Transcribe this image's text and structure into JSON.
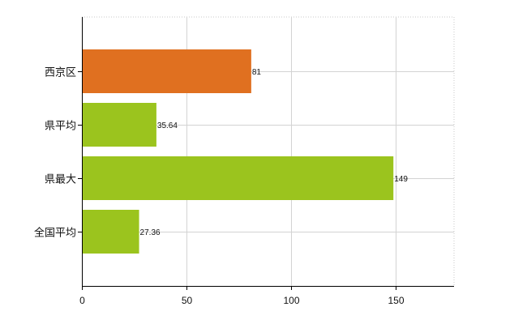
{
  "chart_data": {
    "type": "bar",
    "orientation": "horizontal",
    "categories": [
      "西京区",
      "県平均",
      "県最大",
      "全国平均"
    ],
    "values": [
      81,
      35.64,
      149,
      27.36
    ],
    "data_labels": [
      "81",
      "35.64",
      "149",
      "27.36"
    ],
    "colors": [
      "#e07020",
      "#9bc41e",
      "#9bc41e",
      "#9bc41e"
    ],
    "x_ticks": [
      0,
      50,
      100,
      150
    ],
    "xlim": [
      0,
      178
    ],
    "title": "",
    "xlabel": "",
    "ylabel": "",
    "grid": true,
    "legend": "none"
  }
}
